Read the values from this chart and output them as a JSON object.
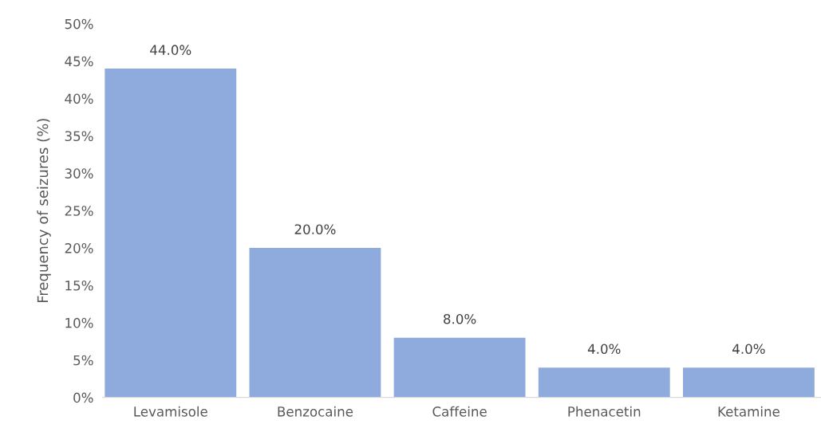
{
  "chart_data": {
    "type": "bar",
    "ylabel": "Frequency of seizures (%)",
    "categories": [
      "Levamisole",
      "Benzocaine",
      "Caffeine",
      "Phenacetin",
      "Ketamine"
    ],
    "values": [
      44.0,
      20.0,
      8.0,
      4.0,
      4.0
    ],
    "color": "#8faadc",
    "value_labels": [
      "44.0%",
      "20.0%",
      "8.0%",
      "4.0%",
      "4.0%"
    ],
    "ylim": [
      0,
      50
    ],
    "yticks": [
      {
        "value": 0,
        "label": "0%"
      },
      {
        "value": 5,
        "label": "5%"
      },
      {
        "value": 10,
        "label": "10%"
      },
      {
        "value": 15,
        "label": "15%"
      },
      {
        "value": 20,
        "label": "20%"
      },
      {
        "value": 25,
        "label": "25%"
      },
      {
        "value": 30,
        "label": "30%"
      },
      {
        "value": 35,
        "label": "35%"
      },
      {
        "value": 40,
        "label": "40%"
      },
      {
        "value": 45,
        "label": "45%"
      },
      {
        "value": 50,
        "label": "50%"
      }
    ],
    "grid": false,
    "legend": false
  }
}
